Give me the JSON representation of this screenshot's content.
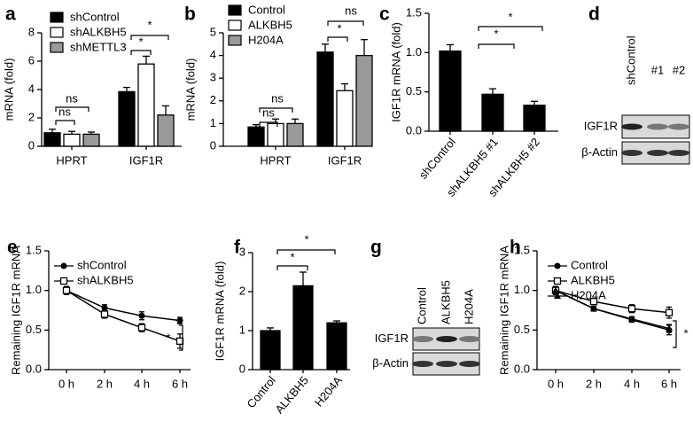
{
  "chart_data": [
    {
      "type": "bar",
      "label": "a",
      "ylabel": "mRNA (fold)",
      "categories": [
        "HPRT",
        "IGF1R"
      ],
      "series": [
        {
          "name": "shControl",
          "color": "#000000",
          "values": [
            0.95,
            3.85
          ],
          "errors": [
            0.25,
            0.3
          ]
        },
        {
          "name": "shALKBH5",
          "color": "#ffffff",
          "values": [
            0.85,
            5.8
          ],
          "errors": [
            0.2,
            0.55
          ]
        },
        {
          "name": "shMETTL3",
          "color": "#999999",
          "values": [
            0.85,
            2.2
          ],
          "errors": [
            0.15,
            0.65
          ]
        }
      ],
      "ylim": [
        0,
        8
      ],
      "yticks": [
        0,
        2,
        4,
        6,
        8
      ],
      "legend": "upper left",
      "annotations": [
        "ns",
        "ns",
        "*",
        "*"
      ]
    },
    {
      "type": "bar",
      "label": "b",
      "ylabel": "mRNA (fold)",
      "categories": [
        "HPRT",
        "IGF1R"
      ],
      "series": [
        {
          "name": "Control",
          "color": "#000000",
          "values": [
            0.85,
            4.15
          ],
          "errors": [
            0.1,
            0.35
          ]
        },
        {
          "name": "ALKBH5",
          "color": "#ffffff",
          "values": [
            1.0,
            2.45
          ],
          "errors": [
            0.2,
            0.3
          ]
        },
        {
          "name": "H204A",
          "color": "#999999",
          "values": [
            1.0,
            4.0
          ],
          "errors": [
            0.2,
            0.7
          ]
        }
      ],
      "ylim": [
        0,
        5
      ],
      "yticks": [
        0,
        1,
        2,
        3,
        4,
        5
      ],
      "legend": "upper left",
      "annotations": [
        "ns",
        "ns",
        "*",
        "ns"
      ]
    },
    {
      "type": "bar",
      "label": "c",
      "ylabel": "IGF1R mRNA (fold)",
      "categories": [
        "shControl",
        "shALKBH5 #1",
        "shALKBH5 #2"
      ],
      "series": [
        {
          "color": "#000000",
          "values": [
            1.02,
            0.47,
            0.33
          ],
          "errors": [
            0.08,
            0.07,
            0.05
          ]
        }
      ],
      "ylim": [
        0,
        1.5
      ],
      "yticks": [
        {
          "value": 0,
          "label": "0.0"
        },
        0.5,
        {
          "value": 1,
          "label": "1.0"
        },
        1.5
      ],
      "xtick_rotation": -50,
      "annotations": [
        "*",
        "*"
      ]
    },
    {
      "type": "blot",
      "label": "d",
      "lanes": [
        "shControl",
        "#1",
        "#2"
      ],
      "rows": [
        "IGF1R",
        "β-Actin"
      ]
    },
    {
      "type": "line",
      "label": "e",
      "ylabel": "Remaining IGF1R mRNA",
      "categories": [
        "0 h",
        "2 h",
        "4 h",
        "6 h"
      ],
      "series": [
        {
          "name": "shControl",
          "color": "#000000",
          "marker": "circle",
          "values": [
            1.0,
            0.78,
            0.68,
            0.62
          ],
          "errors": [
            0.05,
            0.04,
            0.05,
            0.04
          ]
        },
        {
          "name": "shALKBH5",
          "color": "#000000",
          "marker": "open-square",
          "values": [
            1.0,
            0.7,
            0.53,
            0.36
          ],
          "errors": [
            0.05,
            0.05,
            0.05,
            0.09
          ]
        }
      ],
      "ylim": [
        0,
        1.5
      ],
      "yticks": [
        {
          "value": 0,
          "label": "0.0"
        },
        0.5,
        {
          "value": 1,
          "label": "1.0"
        },
        1.5
      ],
      "legend": "upper left",
      "annotations": [
        "*"
      ]
    },
    {
      "type": "bar",
      "label": "f",
      "ylabel": "IGF1R mRNA (fold)",
      "categories": [
        "Control",
        "ALKBH5",
        "H204A"
      ],
      "series": [
        {
          "color": "#000000",
          "values": [
            1.0,
            2.15,
            1.2
          ],
          "errors": [
            0.07,
            0.35,
            0.05
          ]
        }
      ],
      "ylim": [
        0,
        3
      ],
      "yticks": [
        0,
        1,
        2,
        3
      ],
      "xtick_rotation": -50,
      "annotations": [
        "*",
        "*"
      ]
    },
    {
      "type": "blot",
      "label": "g",
      "lanes": [
        "Control",
        "ALKBH5",
        "H204A"
      ],
      "rows": [
        "IGF1R",
        "β-Actin"
      ]
    },
    {
      "type": "line",
      "label": "h",
      "ylabel": "Remaining IGF1R mRNA",
      "categories": [
        "0 h",
        "2 h",
        "4 h",
        "6 h"
      ],
      "series": [
        {
          "name": "Control",
          "color": "#000000",
          "marker": "circle",
          "values": [
            1.0,
            0.77,
            0.63,
            0.5
          ],
          "errors": [
            0.05,
            0.03,
            0.03,
            0.06
          ]
        },
        {
          "name": "ALKBH5",
          "color": "#000000",
          "marker": "open-square",
          "values": [
            1.0,
            0.86,
            0.77,
            0.72
          ],
          "errors": [
            0.05,
            0.03,
            0.05,
            0.07
          ]
        },
        {
          "name": "H204A",
          "color": "#000000",
          "marker": "triangle",
          "values": [
            1.0,
            0.77,
            0.64,
            0.52
          ],
          "errors": [
            0.05,
            0.03,
            0.03,
            0.05
          ]
        }
      ],
      "ylim": [
        0,
        1.5
      ],
      "yticks": [
        {
          "value": 0,
          "label": "0.0"
        },
        0.5,
        {
          "value": 1,
          "label": "1.0"
        },
        1.5
      ],
      "legend": "upper left",
      "annotations": [
        "*"
      ]
    }
  ]
}
